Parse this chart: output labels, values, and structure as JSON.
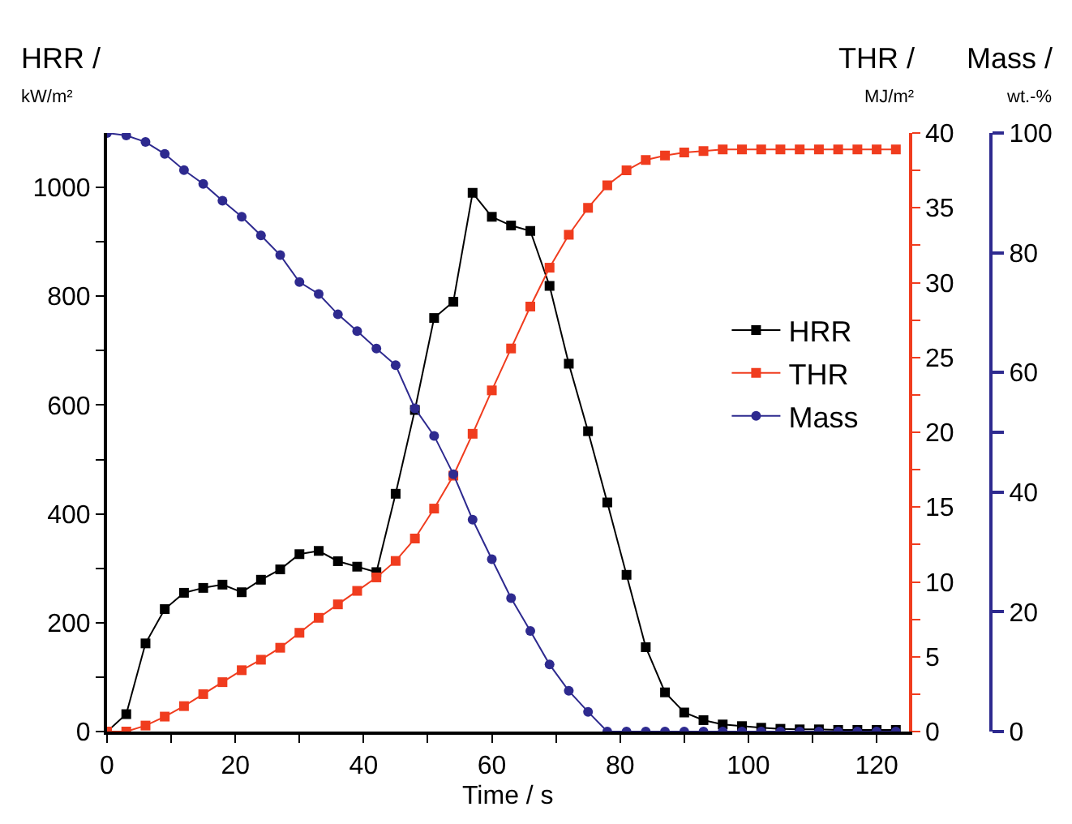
{
  "chart_data": {
    "type": "line",
    "xlabel": "Time / s",
    "ylabel": "HRR /\nkW/m²",
    "y2label": "THR /\nMJ/m²",
    "y3label": "Mass /\nwt.-%",
    "x": [
      0,
      3,
      6,
      9,
      12,
      15,
      18,
      21,
      24,
      27,
      30,
      33,
      36,
      39,
      42,
      45,
      48,
      51,
      54,
      57,
      60,
      63,
      66,
      69,
      72,
      75,
      78,
      81,
      84,
      87,
      90,
      93,
      96,
      99,
      102,
      105,
      108,
      111,
      114,
      117,
      120,
      123
    ],
    "series": [
      {
        "name": "HRR",
        "color": "#000000",
        "marker": "square",
        "values": [
          0,
          32,
          162,
          225,
          255,
          264,
          270,
          256,
          279,
          298,
          326,
          332,
          313,
          303,
          293,
          437,
          591,
          760,
          790,
          990,
          946,
          930,
          920,
          819,
          676,
          552,
          421,
          288,
          155,
          72,
          35,
          21,
          13,
          10,
          7,
          5,
          4,
          4,
          3,
          3,
          3,
          3
        ]
      },
      {
        "name": "THR",
        "color": "#f03c1e",
        "marker": "square",
        "axis": "y2",
        "values": [
          0,
          0,
          0.4,
          1.0,
          1.7,
          2.5,
          3.3,
          4.1,
          4.8,
          5.6,
          6.6,
          7.6,
          8.5,
          9.4,
          10.3,
          11.4,
          12.9,
          14.9,
          17.1,
          19.9,
          22.8,
          25.6,
          28.4,
          31.0,
          33.2,
          35.0,
          36.5,
          37.5,
          38.2,
          38.5,
          38.7,
          38.8,
          38.9,
          38.9,
          38.9,
          38.9,
          38.9,
          38.9,
          38.9,
          38.9,
          38.9,
          38.9
        ]
      },
      {
        "name": "Mass",
        "color": "#2e2a8f",
        "marker": "circle",
        "axis": "y3",
        "values": [
          100,
          99.6,
          98.5,
          96.5,
          93.8,
          91.5,
          88.7,
          86.0,
          82.9,
          79.6,
          75.1,
          73.1,
          69.7,
          66.9,
          64.0,
          61.2,
          54.0,
          49.4,
          43.0,
          35.4,
          28.8,
          22.3,
          16.8,
          11.2,
          6.8,
          3.3,
          0,
          0,
          0,
          0,
          0,
          0,
          0,
          0,
          0,
          0,
          0,
          0,
          0,
          0,
          0,
          0
        ]
      }
    ],
    "xlim": [
      0,
      125
    ],
    "xticks": [
      0,
      {
        "value": 10,
        "label": null
      },
      20,
      {
        "value": 30,
        "label": null
      },
      40,
      {
        "value": 50,
        "label": null
      },
      60,
      {
        "value": 70,
        "label": null
      },
      80,
      {
        "value": 90,
        "label": null
      },
      100,
      {
        "value": 110,
        "label": null
      },
      120
    ],
    "ylim": [
      0,
      1100
    ],
    "yticks": [
      0,
      {
        "value": 100,
        "label": null
      },
      200,
      {
        "value": 300,
        "label": null
      },
      400,
      {
        "value": 500,
        "label": null
      },
      600,
      {
        "value": 700,
        "label": null
      },
      800,
      {
        "value": 900,
        "label": null
      },
      1000
    ],
    "y2lim": [
      0,
      40
    ],
    "y2ticks": [
      0,
      {
        "value": 2.5,
        "label": null
      },
      5,
      {
        "value": 7.5,
        "label": null
      },
      10,
      {
        "value": 12.5,
        "label": null
      },
      15,
      {
        "value": 17.5,
        "label": null
      },
      20,
      {
        "value": 22.5,
        "label": null
      },
      25,
      {
        "value": 27.5,
        "label": null
      },
      30,
      {
        "value": 32.5,
        "label": null
      },
      35,
      {
        "value": 37.5,
        "label": null
      },
      40
    ],
    "y3lim": [
      0,
      100
    ],
    "y3ticks": [
      0,
      20,
      40,
      {
        "value": 50,
        "label": null
      },
      60,
      80,
      100
    ],
    "legend": "right"
  }
}
